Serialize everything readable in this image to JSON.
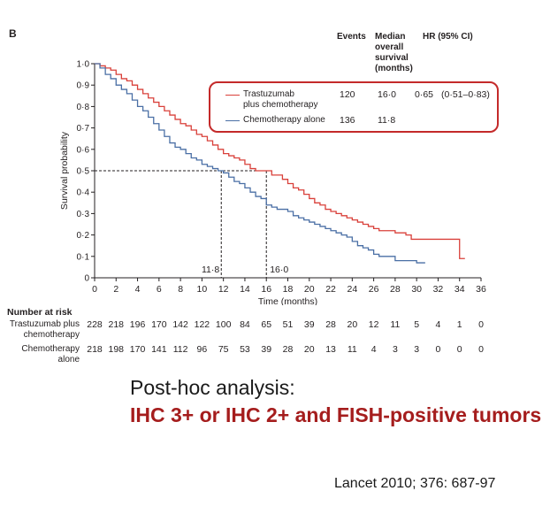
{
  "panel_letter": "B",
  "legend": {
    "headers": {
      "events": "Events",
      "median": "Median overall survival (months)",
      "hr": "HR (95% CI)"
    },
    "rows": [
      {
        "label_line1": "Trastuzumab",
        "label_line2": "plus chemotherapy",
        "events": "120",
        "median": "16·0",
        "hr": "0·65",
        "ci": "(0·51–0·83)",
        "color": "#d9403a"
      },
      {
        "label_line1": "Chemotherapy alone",
        "label_line2": "",
        "events": "136",
        "median": "11·8",
        "hr": "",
        "ci": "",
        "color": "#4a6fa5"
      }
    ]
  },
  "risk_table": {
    "title": "Number at risk",
    "rows": [
      {
        "label": "Trastuzumab plus chemotherapy",
        "values": [
          "228",
          "218",
          "196",
          "170",
          "142",
          "122",
          "100",
          "84",
          "65",
          "51",
          "39",
          "28",
          "20",
          "12",
          "11",
          "5",
          "4",
          "1",
          "0"
        ]
      },
      {
        "label": "Chemotherapy alone",
        "values": [
          "218",
          "198",
          "170",
          "141",
          "112",
          "96",
          "75",
          "53",
          "39",
          "28",
          "20",
          "13",
          "11",
          "4",
          "3",
          "3",
          "0",
          "0",
          "0"
        ]
      }
    ]
  },
  "subtitle": "Post-hoc analysis:",
  "highlight": "IHC 3+ or IHC 2+ and FISH-positive tumors",
  "citation": "Lancet 2010; 376: 687-97",
  "chart_data": {
    "type": "line",
    "xlabel": "Time (months)",
    "ylabel": "Survival probability",
    "xlim": [
      0,
      36
    ],
    "ylim": [
      0,
      1.0
    ],
    "xticks": [
      "0",
      "2",
      "4",
      "6",
      "8",
      "10",
      "12",
      "14",
      "16",
      "18",
      "20",
      "22",
      "24",
      "26",
      "28",
      "30",
      "32",
      "34",
      "36"
    ],
    "yticks": [
      "0",
      "0·1",
      "0·2",
      "0·3",
      "0·4",
      "0·5",
      "0·6",
      "0·7",
      "0·8",
      "0·9",
      "1·0"
    ],
    "median_labels": [
      {
        "x": 11.8,
        "label": "11·8"
      },
      {
        "x": 16.0,
        "label": "16·0"
      }
    ],
    "series": [
      {
        "name": "Trastuzumab plus chemotherapy",
        "color": "#d9403a",
        "x": [
          0,
          0.5,
          1,
          1.5,
          2,
          2.5,
          3,
          3.5,
          4,
          4.5,
          5,
          5.5,
          6,
          6.5,
          7,
          7.5,
          8,
          8.5,
          9,
          9.5,
          10,
          10.5,
          11,
          11.5,
          12,
          12.5,
          13,
          13.5,
          14,
          14.5,
          15,
          15.5,
          16,
          16.5,
          17,
          17.5,
          18,
          18.5,
          19,
          19.5,
          20,
          20.5,
          21,
          21.5,
          22,
          22.5,
          23,
          23.5,
          24,
          24.5,
          25,
          25.5,
          26,
          26.5,
          27,
          27.5,
          28,
          28.5,
          29,
          29.5,
          30,
          31,
          32,
          33,
          33.5,
          34,
          34.5
        ],
        "y": [
          1.0,
          0.99,
          0.98,
          0.97,
          0.95,
          0.93,
          0.92,
          0.9,
          0.88,
          0.86,
          0.84,
          0.82,
          0.8,
          0.78,
          0.76,
          0.74,
          0.72,
          0.71,
          0.69,
          0.67,
          0.66,
          0.64,
          0.62,
          0.6,
          0.58,
          0.57,
          0.56,
          0.55,
          0.53,
          0.51,
          0.5,
          0.5,
          0.5,
          0.48,
          0.48,
          0.46,
          0.44,
          0.42,
          0.41,
          0.39,
          0.37,
          0.35,
          0.34,
          0.32,
          0.31,
          0.3,
          0.29,
          0.28,
          0.27,
          0.26,
          0.25,
          0.24,
          0.23,
          0.22,
          0.22,
          0.22,
          0.21,
          0.21,
          0.2,
          0.18,
          0.18,
          0.18,
          0.18,
          0.18,
          0.18,
          0.09,
          0.09
        ]
      },
      {
        "name": "Chemotherapy alone",
        "color": "#4a6fa5",
        "x": [
          0,
          0.5,
          1,
          1.5,
          2,
          2.5,
          3,
          3.5,
          4,
          4.5,
          5,
          5.5,
          6,
          6.5,
          7,
          7.5,
          8,
          8.5,
          9,
          9.5,
          10,
          10.5,
          11,
          11.5,
          12,
          12.5,
          13,
          13.5,
          14,
          14.5,
          15,
          15.5,
          16,
          16.5,
          17,
          17.5,
          18,
          18.5,
          19,
          19.5,
          20,
          20.5,
          21,
          21.5,
          22,
          22.5,
          23,
          23.5,
          24,
          24.5,
          25,
          25.5,
          26,
          26.5,
          27,
          27.5,
          28,
          29,
          30,
          30.8
        ],
        "y": [
          1.0,
          0.98,
          0.95,
          0.93,
          0.9,
          0.88,
          0.86,
          0.83,
          0.8,
          0.78,
          0.75,
          0.72,
          0.69,
          0.66,
          0.63,
          0.61,
          0.6,
          0.58,
          0.56,
          0.55,
          0.53,
          0.52,
          0.51,
          0.5,
          0.49,
          0.47,
          0.45,
          0.44,
          0.42,
          0.4,
          0.38,
          0.37,
          0.34,
          0.33,
          0.32,
          0.32,
          0.31,
          0.29,
          0.28,
          0.27,
          0.26,
          0.25,
          0.24,
          0.23,
          0.22,
          0.21,
          0.2,
          0.19,
          0.17,
          0.15,
          0.14,
          0.13,
          0.11,
          0.1,
          0.1,
          0.1,
          0.08,
          0.08,
          0.07,
          0.07
        ]
      }
    ]
  }
}
